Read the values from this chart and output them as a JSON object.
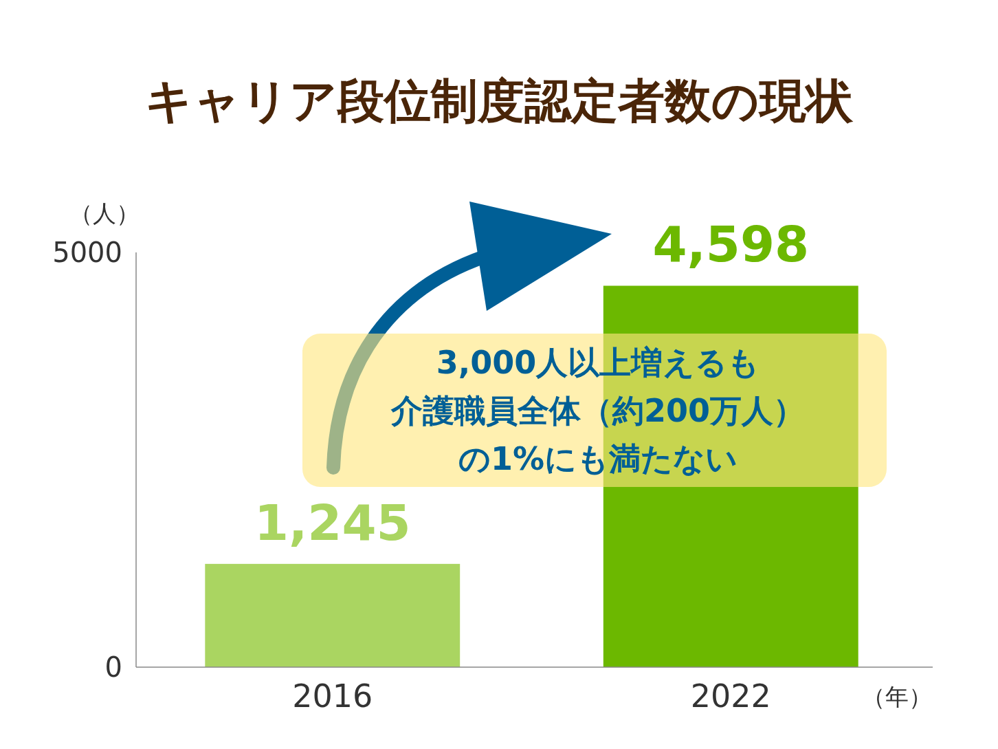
{
  "chart_data": {
    "type": "bar",
    "title": "キャリア段位制度認定者数の現状",
    "ylabel": "（人）",
    "xlabel": "（年）",
    "categories": [
      "2016",
      "2022"
    ],
    "values": [
      1245,
      4598
    ],
    "colors": [
      "#aad561",
      "#6cb800"
    ],
    "value_labels": [
      "1,245",
      "4,598"
    ],
    "ylim": [
      0,
      5000
    ],
    "yticks": [
      0,
      5000
    ],
    "annotations": [
      "3,000人以上増えるも",
      "介護職員全体（約200万人）",
      "の1%にも満たない"
    ]
  }
}
